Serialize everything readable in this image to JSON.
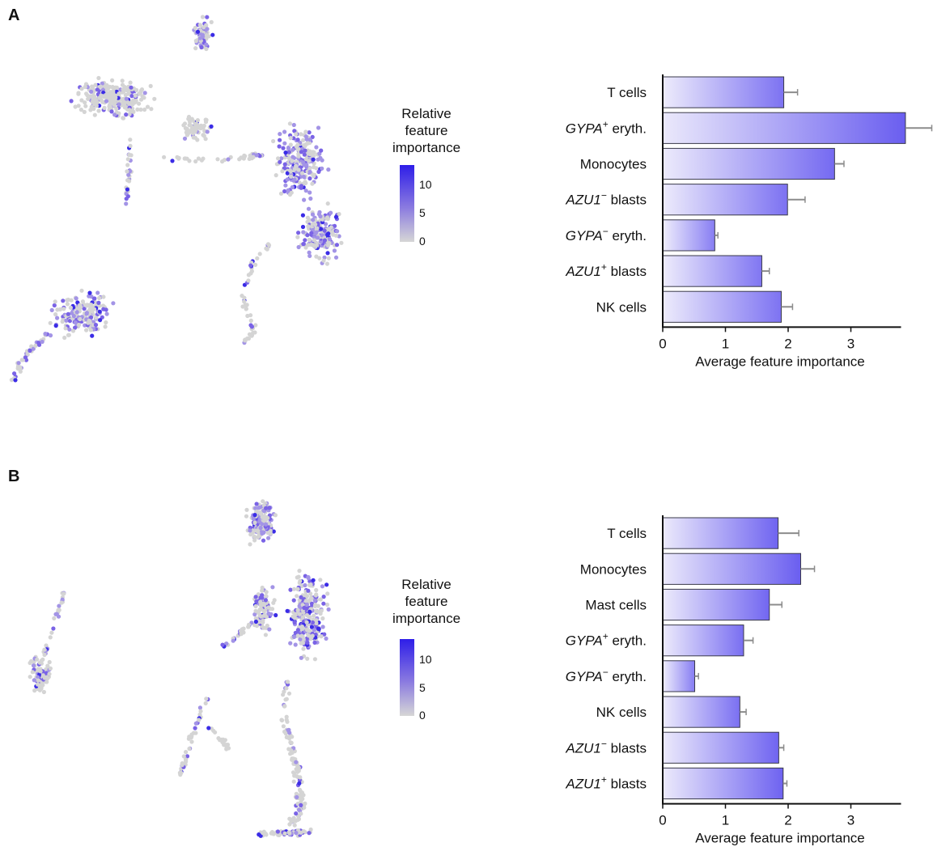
{
  "panels": [
    {
      "letter": "A",
      "legend": {
        "title_lines": [
          "Relative",
          "feature",
          "importance"
        ],
        "ticks": [
          "10",
          "5",
          "0"
        ]
      },
      "chart_data": {
        "type": "bar",
        "orientation": "horizontal",
        "categories": [
          "T cells",
          "GYPA+ eryth.",
          "Monocytes",
          "AZU1− blasts",
          "GYPA− eryth.",
          "AZU1+ blasts",
          "NK cells"
        ],
        "labels": [
          {
            "italic": "",
            "sup": "",
            "rest": "T cells"
          },
          {
            "italic": "GYPA",
            "sup": "+",
            "rest": " eryth."
          },
          {
            "italic": "",
            "sup": "",
            "rest": "Monocytes"
          },
          {
            "italic": "AZU1",
            "sup": "−",
            "rest": " blasts"
          },
          {
            "italic": "GYPA",
            "sup": "−",
            "rest": " eryth."
          },
          {
            "italic": "AZU1",
            "sup": "+",
            "rest": " blasts"
          },
          {
            "italic": "",
            "sup": "",
            "rest": "NK cells"
          }
        ],
        "values": [
          1.93,
          3.87,
          2.74,
          1.99,
          0.83,
          1.58,
          1.89
        ],
        "errors": [
          0.22,
          0.42,
          0.15,
          0.28,
          0.05,
          0.12,
          0.18
        ],
        "xlabel": "Average feature importance",
        "xlim": [
          0,
          3.8
        ],
        "xticks": [
          "0",
          "1",
          "2",
          "3"
        ]
      }
    },
    {
      "letter": "B",
      "legend": {
        "title_lines": [
          "Relative",
          "feature",
          "importance"
        ],
        "ticks": [
          "10",
          "5",
          "0"
        ]
      },
      "chart_data": {
        "type": "bar",
        "orientation": "horizontal",
        "categories": [
          "T cells",
          "Monocytes",
          "Mast cells",
          "GYPA+ eryth.",
          "GYPA− eryth.",
          "NK cells",
          "AZU1− blasts",
          "AZU1+ blasts"
        ],
        "labels": [
          {
            "italic": "",
            "sup": "",
            "rest": "T cells"
          },
          {
            "italic": "",
            "sup": "",
            "rest": "Monocytes"
          },
          {
            "italic": "",
            "sup": "",
            "rest": "Mast cells"
          },
          {
            "italic": "GYPA",
            "sup": "+",
            "rest": " eryth."
          },
          {
            "italic": "GYPA",
            "sup": "−",
            "rest": " eryth."
          },
          {
            "italic": "",
            "sup": "",
            "rest": "NK cells"
          },
          {
            "italic": "AZU1",
            "sup": "−",
            "rest": " blasts"
          },
          {
            "italic": "AZU1",
            "sup": "+",
            "rest": " blasts"
          }
        ],
        "values": [
          1.84,
          2.2,
          1.7,
          1.29,
          0.51,
          1.23,
          1.85,
          1.92
        ],
        "errors": [
          0.33,
          0.22,
          0.2,
          0.15,
          0.06,
          0.1,
          0.08,
          0.06
        ],
        "xlabel": "Average feature importance",
        "xlim": [
          0,
          3.8
        ],
        "xticks": [
          "0",
          "1",
          "2",
          "3"
        ]
      }
    }
  ]
}
